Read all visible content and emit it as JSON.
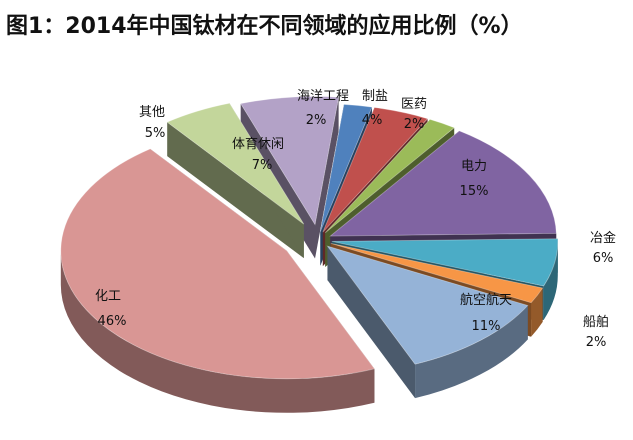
{
  "title": "图1：2014年中国钛材在不同领域的应用比例（%）",
  "chart_data": {
    "type": "pie",
    "title": "图1：2014年中国钛材在不同领域的应用比例（%）",
    "unit": "%",
    "slices": [
      {
        "name": "海洋工程",
        "value": 2,
        "value_label": "2%",
        "color": "#4F81BD"
      },
      {
        "name": "制盐",
        "value": 4,
        "value_label": "4%",
        "color": "#C0504D"
      },
      {
        "name": "医药",
        "value": 2,
        "value_label": "2%",
        "color": "#9BBB59"
      },
      {
        "name": "电力",
        "value": 15,
        "value_label": "15%",
        "color": "#8064A2"
      },
      {
        "name": "冶金",
        "value": 6,
        "value_label": "6%",
        "color": "#4BACC6"
      },
      {
        "name": "船舶",
        "value": 2,
        "value_label": "2%",
        "color": "#F79646"
      },
      {
        "name": "航空航天",
        "value": 11,
        "value_label": "11%",
        "color": "#95B3D7"
      },
      {
        "name": "化工",
        "value": 46,
        "value_label": "46%",
        "color": "#D99694"
      },
      {
        "name": "其他",
        "value": 5,
        "value_label": "5%",
        "color": "#C3D69B"
      },
      {
        "name": "体育休闲",
        "value": 7,
        "value_label": "7%",
        "color": "#B3A2C7"
      }
    ]
  }
}
